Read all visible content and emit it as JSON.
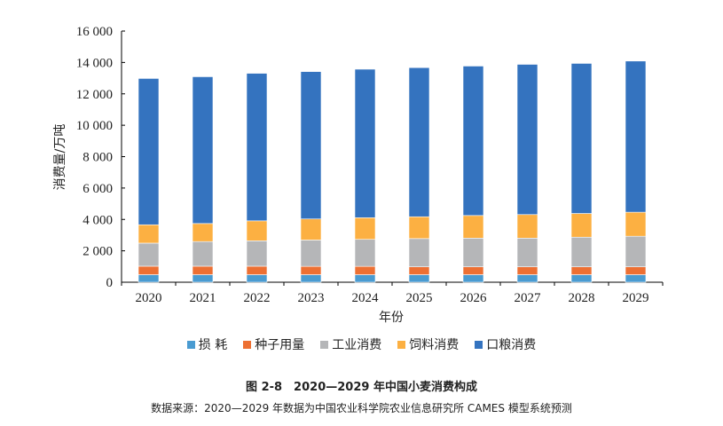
{
  "chart_data": {
    "type": "bar",
    "stacked": true,
    "categories": [
      "2020",
      "2021",
      "2022",
      "2023",
      "2024",
      "2025",
      "2026",
      "2027",
      "2028",
      "2029"
    ],
    "series": [
      {
        "name": "损 耗",
        "color": "#4a9bd1",
        "values": [
          480,
          480,
          480,
          480,
          480,
          480,
          480,
          480,
          480,
          480
        ]
      },
      {
        "name": "种子用量",
        "color": "#ed7033",
        "values": [
          540,
          540,
          540,
          530,
          530,
          500,
          500,
          500,
          500,
          500
        ]
      },
      {
        "name": "工业消费",
        "color": "#b5b6b8",
        "values": [
          1470,
          1570,
          1620,
          1680,
          1720,
          1800,
          1830,
          1830,
          1890,
          1950
        ]
      },
      {
        "name": "饲料消费",
        "color": "#fcb042",
        "values": [
          1170,
          1150,
          1270,
          1340,
          1380,
          1390,
          1440,
          1500,
          1510,
          1530
        ]
      },
      {
        "name": "口粮消费",
        "color": "#3473bf",
        "values": [
          9320,
          9350,
          9400,
          9390,
          9460,
          9500,
          9520,
          9570,
          9560,
          9630
        ]
      }
    ],
    "xlabel": "年份",
    "ylabel": "消费量/万吨",
    "ylim": [
      0,
      16000
    ],
    "yticks": [
      "0",
      "2 000",
      "4 000",
      "6 000",
      "8 000",
      "10 000",
      "12 000",
      "14 000",
      "16 000"
    ],
    "grid": false,
    "legend": "bottom",
    "title": "图 2-8　2020—2029 年中国小麦消费构成",
    "source": "数据来源：2020—2029 年数据为中国农业科学院农业信息研究所 CAMES 模型系统预测"
  }
}
